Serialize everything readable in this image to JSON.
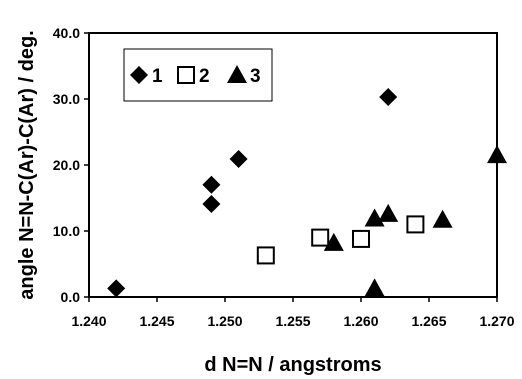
{
  "chart_data": {
    "type": "scatter",
    "xlabel": "d N=N / angstroms",
    "ylabel": "angle N=N-C(Ar)-C(Ar) / deg.",
    "xlim": [
      1.24,
      1.27
    ],
    "ylim": [
      0.0,
      40.0
    ],
    "x_ticks": [
      "1.240",
      "1.245",
      "1.250",
      "1.255",
      "1.260",
      "1.265",
      "1.270"
    ],
    "y_ticks": [
      "0.0",
      "10.0",
      "20.0",
      "30.0",
      "40.0"
    ],
    "grid": false,
    "legend_position": "top-left",
    "series": [
      {
        "name": "1",
        "marker": "diamond",
        "color": "#000000",
        "points": [
          [
            1.242,
            1.3
          ],
          [
            1.249,
            14.1
          ],
          [
            1.249,
            17.0
          ],
          [
            1.251,
            20.9
          ],
          [
            1.262,
            30.3
          ]
        ]
      },
      {
        "name": "2",
        "marker": "open-square",
        "color": "#000000",
        "points": [
          [
            1.253,
            6.3
          ],
          [
            1.257,
            9.0
          ],
          [
            1.26,
            8.8
          ],
          [
            1.264,
            11.0
          ]
        ]
      },
      {
        "name": "3",
        "marker": "triangle",
        "color": "#000000",
        "points": [
          [
            1.258,
            8.2
          ],
          [
            1.261,
            11.9
          ],
          [
            1.262,
            12.6
          ],
          [
            1.261,
            1.3
          ],
          [
            1.266,
            11.7
          ],
          [
            1.27,
            21.5
          ]
        ]
      }
    ]
  }
}
